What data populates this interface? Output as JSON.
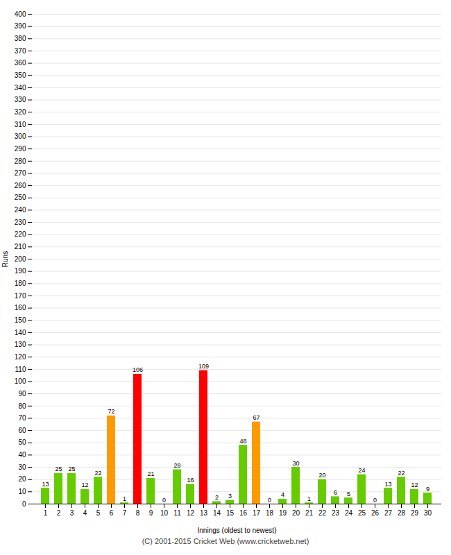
{
  "chart_data": {
    "type": "bar",
    "categories": [
      "1",
      "2",
      "3",
      "4",
      "5",
      "6",
      "7",
      "8",
      "9",
      "10",
      "11",
      "12",
      "13",
      "14",
      "15",
      "16",
      "17",
      "18",
      "19",
      "20",
      "21",
      "22",
      "23",
      "24",
      "25",
      "26",
      "27",
      "28",
      "29",
      "30"
    ],
    "values": [
      13,
      25,
      25,
      12,
      22,
      72,
      1,
      106,
      21,
      0,
      28,
      16,
      109,
      2,
      3,
      48,
      67,
      0,
      4,
      30,
      1,
      20,
      6,
      5,
      24,
      0,
      13,
      22,
      12,
      9
    ],
    "colors": [
      "#66cc00",
      "#66cc00",
      "#66cc00",
      "#66cc00",
      "#66cc00",
      "#ff9900",
      "#66cc00",
      "#ff0000",
      "#66cc00",
      "#66cc00",
      "#66cc00",
      "#66cc00",
      "#ff0000",
      "#66cc00",
      "#66cc00",
      "#66cc00",
      "#ff9900",
      "#66cc00",
      "#66cc00",
      "#66cc00",
      "#66cc00",
      "#66cc00",
      "#66cc00",
      "#66cc00",
      "#66cc00",
      "#66cc00",
      "#66cc00",
      "#66cc00",
      "#66cc00",
      "#66cc00"
    ],
    "xlabel": "Innings (oldest to newest)",
    "ylabel": "Runs",
    "ylim": [
      0,
      400
    ],
    "yticks": [
      0,
      10,
      20,
      30,
      40,
      50,
      60,
      70,
      80,
      90,
      100,
      110,
      120,
      130,
      140,
      150,
      160,
      170,
      180,
      190,
      200,
      210,
      220,
      230,
      240,
      250,
      260,
      270,
      280,
      290,
      300,
      310,
      320,
      330,
      340,
      350,
      360,
      370,
      380,
      390,
      400
    ],
    "grid": true,
    "data_labels": true,
    "footer": "(C) 2001-2015 Cricket Web (www.cricketweb.net)"
  }
}
